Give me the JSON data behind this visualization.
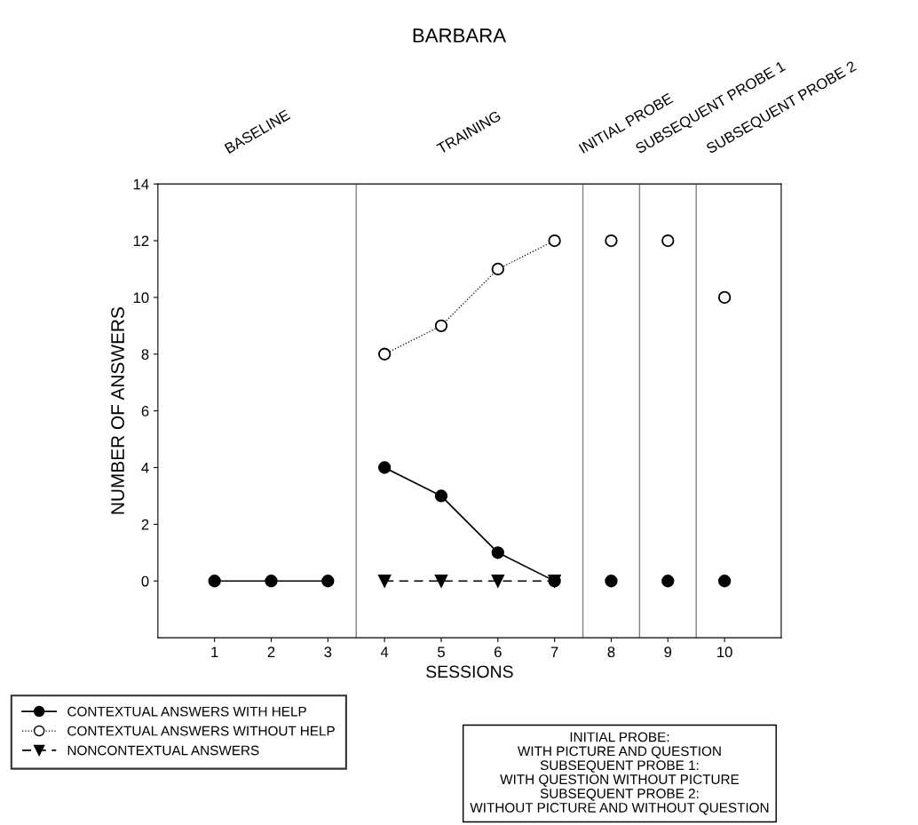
{
  "chart_data": {
    "type": "line",
    "title": "BARBARA",
    "xlabel": "SESSIONS",
    "ylabel": "NUMBER OF ANSWERS",
    "series": [
      {
        "name": "CONTEXTUAL ANSWERS WITH HELP",
        "color": "#000000",
        "marker": "circle",
        "line_style": "solid",
        "x": [
          4,
          5,
          6,
          7
        ],
        "values": [
          4,
          3,
          1,
          0
        ]
      },
      {
        "name": "CONTEXTUAL ANSWERS WITHOUT HELP",
        "color": "#000000",
        "marker": "circle",
        "line_style": "dotted",
        "x": [
          4,
          5,
          6,
          7
        ],
        "values": [
          8,
          9,
          11,
          12
        ]
      },
      {
        "name": "NONCONTEXTUAL ANSWERS",
        "color": "#000000",
        "marker": "triangle",
        "line_style": "dashed",
        "x": [
          4,
          5,
          6,
          7
        ],
        "values": [
          0,
          0,
          0,
          0
        ]
      },
      {
        "color": "#000000",
        "marker": "circle",
        "line_style": "solid",
        "x": [
          1,
          2,
          3
        ],
        "values": [
          0,
          0,
          0
        ]
      },
      {
        "type": "scatter",
        "color": "#000000",
        "marker": "circle",
        "line_style": "solid",
        "x": [
          8,
          9,
          10
        ],
        "values": [
          0,
          0,
          0
        ]
      },
      {
        "type": "scatter",
        "color": "#000000",
        "marker": "circle",
        "line_style": "dotted",
        "x": [
          8,
          9,
          10
        ],
        "values": [
          12,
          12,
          10
        ]
      }
    ],
    "xlim": [
      0,
      11
    ],
    "xticks": [
      1,
      2,
      3,
      4,
      5,
      6,
      7,
      8,
      9,
      10
    ],
    "ylim": [
      -2,
      14
    ],
    "yticks": [
      0,
      2,
      4,
      6,
      8,
      10,
      12,
      14
    ],
    "ref_lines": [
      {
        "axis": "x",
        "value": 3.5,
        "color": "#808080"
      },
      {
        "axis": "x",
        "value": 7.5,
        "color": "#808080"
      },
      {
        "axis": "x",
        "value": 8.5,
        "color": "#808080"
      },
      {
        "axis": "x",
        "value": 9.5,
        "color": "#808080"
      }
    ],
    "annotations": [
      "BASELINE",
      "TRAINING",
      "INITIAL PROBE",
      "SUBSEQUENT PROBE 1",
      "SUBSEQUENT PROBE 2",
      "INITIAL PROBE:\nWITH PICTURE AND QUESTION\nSUBSEQUENT PROBE 1:\nWITH QUESTION WITHOUT PICTURE\nSUBSEQUENT PROBE 2:\nWITHOUT PICTURE AND WITHOUT QUESTION"
    ],
    "legend": "bottom left",
    "grid": false
  }
}
